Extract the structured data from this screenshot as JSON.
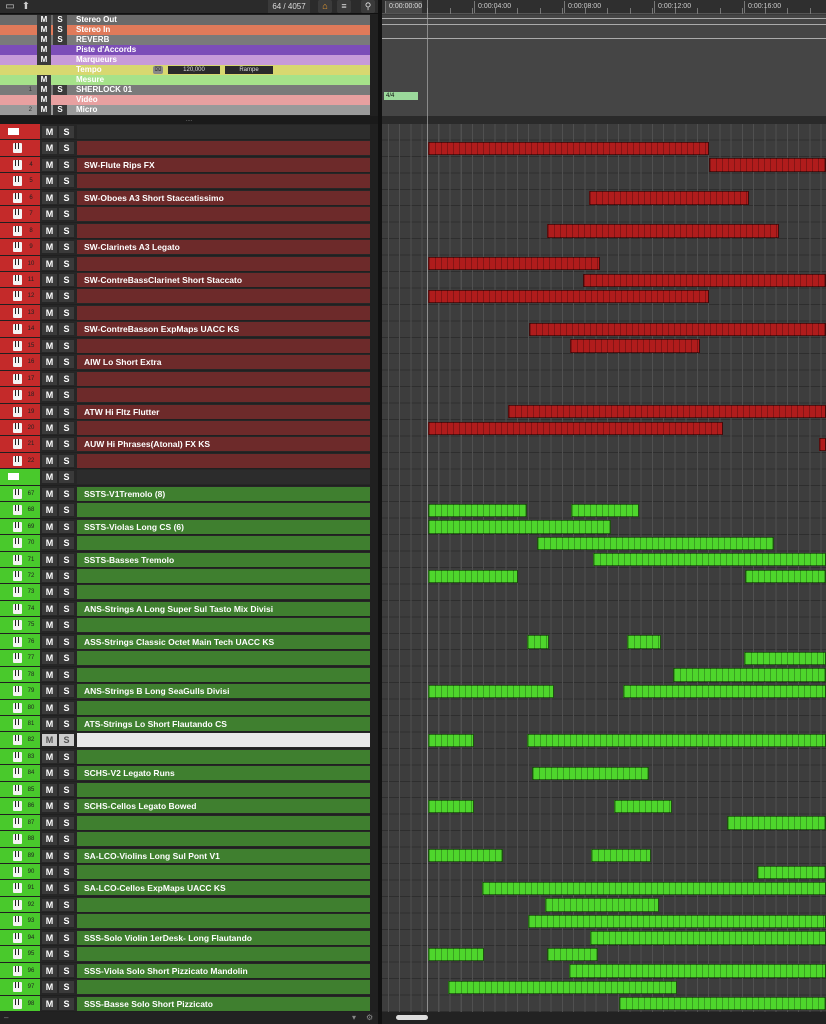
{
  "toolbar": {
    "counter": "64 / 4057"
  },
  "global_tracks": [
    {
      "name": "Stereo Out",
      "color": "#6a6a6a",
      "icon": "audio-out-icon",
      "num": "",
      "m": "M",
      "s": "S"
    },
    {
      "name": "Stereo In",
      "color": "#e07a5a",
      "icon": "audio-in-icon",
      "num": "",
      "m": "M",
      "s": "S"
    },
    {
      "name": "REVERB",
      "color": "#7a7a7a",
      "icon": "fx-icon",
      "num": "",
      "m": "M",
      "s": "S"
    },
    {
      "name": "Piste d'Accords",
      "color": "#7c4db8",
      "icon": "chord-icon",
      "num": "",
      "m": "M",
      "s": ""
    },
    {
      "name": "Marqueurs",
      "color": "#c79bd9",
      "icon": "marker-icon",
      "num": "",
      "m": "M",
      "s": ""
    },
    {
      "name": "Tempo",
      "color": "#d8d870",
      "icon": "tempo-icon",
      "num": "",
      "m": "",
      "s": ""
    },
    {
      "name": "Mesure",
      "color": "#a6e28a",
      "icon": "signature-icon",
      "num": "",
      "m": "M",
      "s": ""
    },
    {
      "name": "SHERLOCK 01",
      "color": "#7a7a7a",
      "icon": "video-icon",
      "num": "1",
      "m": "M",
      "s": "S"
    },
    {
      "name": "Vidéo",
      "color": "#e8a0a0",
      "icon": "video-icon",
      "num": "",
      "m": "M",
      "s": ""
    },
    {
      "name": "Micro",
      "color": "#9a9a9a",
      "icon": "mic-icon",
      "num": "2",
      "m": "M",
      "s": "S"
    }
  ],
  "tempo": {
    "value": "120,000",
    "mode": "Rampe"
  },
  "signature": "4/4",
  "ruler": [
    "0:00:00:00",
    "0:00:04:00",
    "0:00:08:00",
    "0:00:12:00",
    "0:00:16:00"
  ],
  "colors": {
    "red_track": "#6d2a2a",
    "red_accent": "#c42a2a",
    "green_track": "#3f7f2f",
    "green_accent": "#49c92c",
    "red_clip": "#b01c1c",
    "green_clip": "#4ed62c"
  },
  "tracks": [
    {
      "type": "folder",
      "color": "red",
      "num": "",
      "name": "",
      "m": "M",
      "s": "S"
    },
    {
      "type": "inst",
      "color": "red",
      "num": "",
      "name": "",
      "m": "M",
      "s": "S",
      "clips": [
        [
          0,
          314
        ]
      ]
    },
    {
      "type": "inst",
      "color": "red",
      "num": "4",
      "name": "SW-Flute Rips FX",
      "m": "M",
      "s": "S",
      "clips": [
        [
          314,
          444
        ]
      ]
    },
    {
      "type": "inst",
      "color": "red",
      "num": "5",
      "name": "",
      "m": "M",
      "s": "S",
      "clips": []
    },
    {
      "type": "inst",
      "color": "red",
      "num": "6",
      "name": "SW-Oboes A3 Short Staccatissimo",
      "m": "M",
      "s": "S",
      "clips": [
        [
          180,
          358
        ]
      ]
    },
    {
      "type": "inst",
      "color": "red",
      "num": "7",
      "name": "",
      "m": "M",
      "s": "S",
      "clips": []
    },
    {
      "type": "inst",
      "color": "red",
      "num": "8",
      "name": "",
      "m": "M",
      "s": "S",
      "clips": [
        [
          133,
          392
        ]
      ]
    },
    {
      "type": "inst",
      "color": "red",
      "num": "9",
      "name": "SW-Clarinets A3 Legato",
      "m": "M",
      "s": "S",
      "clips": []
    },
    {
      "type": "inst",
      "color": "red",
      "num": "10",
      "name": "",
      "m": "M",
      "s": "S",
      "clips": [
        [
          0,
          192
        ]
      ]
    },
    {
      "type": "inst",
      "color": "red",
      "num": "11",
      "name": "SW-ContreBassClarinet Short Staccato",
      "m": "M",
      "s": "S",
      "clips": [
        [
          173,
          444
        ]
      ]
    },
    {
      "type": "inst",
      "color": "red",
      "num": "12",
      "name": "",
      "m": "M",
      "s": "S",
      "clips": [
        [
          0,
          314
        ]
      ]
    },
    {
      "type": "inst",
      "color": "red",
      "num": "13",
      "name": "",
      "m": "M",
      "s": "S",
      "clips": []
    },
    {
      "type": "inst",
      "color": "red",
      "num": "14",
      "name": "SW-ContreBasson ExpMaps UACC KS",
      "m": "M",
      "s": "S",
      "clips": [
        [
          113,
          444
        ]
      ]
    },
    {
      "type": "inst",
      "color": "red",
      "num": "15",
      "name": "",
      "m": "M",
      "s": "S",
      "clips": [
        [
          158,
          304
        ]
      ]
    },
    {
      "type": "inst",
      "color": "red",
      "num": "16",
      "name": "AIW Lo Short Extra",
      "m": "M",
      "s": "S",
      "clips": []
    },
    {
      "type": "inst",
      "color": "red",
      "num": "17",
      "name": "",
      "m": "M",
      "s": "S",
      "clips": []
    },
    {
      "type": "inst",
      "color": "red",
      "num": "18",
      "name": "",
      "m": "M",
      "s": "S",
      "clips": []
    },
    {
      "type": "inst",
      "color": "red",
      "num": "19",
      "name": "ATW Hi Fltz Flutter",
      "m": "M",
      "s": "S",
      "clips": [
        [
          89,
          444
        ]
      ]
    },
    {
      "type": "inst",
      "color": "red",
      "num": "20",
      "name": "",
      "m": "M",
      "s": "S",
      "clips": [
        [
          0,
          329
        ]
      ]
    },
    {
      "type": "inst",
      "color": "red",
      "num": "21",
      "name": "AUW Hi Phrases(Atonal) FX KS",
      "m": "M",
      "s": "S",
      "clips": [
        [
          436,
          444
        ]
      ]
    },
    {
      "type": "inst",
      "color": "red",
      "num": "22",
      "name": "",
      "m": "M",
      "s": "S",
      "clips": []
    },
    {
      "type": "folder",
      "color": "green",
      "num": "",
      "name": "",
      "m": "M",
      "s": "S"
    },
    {
      "type": "inst",
      "color": "green",
      "num": "67",
      "name": "SSTS-V1Tremolo (8)",
      "m": "M",
      "s": "S",
      "clips": []
    },
    {
      "type": "inst",
      "color": "green",
      "num": "68",
      "name": "",
      "m": "M",
      "s": "S",
      "clips": [
        [
          0,
          110
        ],
        [
          160,
          235
        ]
      ]
    },
    {
      "type": "inst",
      "color": "green",
      "num": "69",
      "name": "SSTS-Violas Long CS (6)",
      "m": "M",
      "s": "S",
      "clips": [
        [
          0,
          204
        ]
      ]
    },
    {
      "type": "inst",
      "color": "green",
      "num": "70",
      "name": "",
      "m": "M",
      "s": "S",
      "clips": [
        [
          122,
          386
        ]
      ]
    },
    {
      "type": "inst",
      "color": "green",
      "num": "71",
      "name": "SSTS-Basses Tremolo",
      "m": "M",
      "s": "S",
      "clips": [
        [
          184,
          444
        ]
      ]
    },
    {
      "type": "inst",
      "color": "green",
      "num": "72",
      "name": "",
      "m": "M",
      "s": "S",
      "clips": [
        [
          0,
          100
        ],
        [
          354,
          444
        ]
      ]
    },
    {
      "type": "inst",
      "color": "green",
      "num": "73",
      "name": "",
      "m": "M",
      "s": "S",
      "clips": []
    },
    {
      "type": "inst",
      "color": "green",
      "num": "74",
      "name": "ANS-Strings A Long Super Sul Tasto Mix Divisi",
      "m": "M",
      "s": "S",
      "clips": []
    },
    {
      "type": "inst",
      "color": "green",
      "num": "75",
      "name": "",
      "m": "M",
      "s": "S",
      "clips": []
    },
    {
      "type": "inst",
      "color": "green",
      "num": "76",
      "name": "ASS-Strings Classic Octet Main Tech UACC KS",
      "m": "M",
      "s": "S",
      "clips": [
        [
          110,
          135
        ],
        [
          222,
          260
        ]
      ]
    },
    {
      "type": "inst",
      "color": "green",
      "num": "77",
      "name": "",
      "m": "M",
      "s": "S",
      "clips": [
        [
          353,
          444
        ]
      ]
    },
    {
      "type": "inst",
      "color": "green",
      "num": "78",
      "name": "",
      "m": "M",
      "s": "S",
      "clips": [
        [
          273,
          444
        ]
      ]
    },
    {
      "type": "inst",
      "color": "green",
      "num": "79",
      "name": "ANS-Strings B Long SeaGulls Divisi",
      "m": "M",
      "s": "S",
      "clips": [
        [
          0,
          141
        ],
        [
          217,
          444
        ]
      ]
    },
    {
      "type": "inst",
      "color": "green",
      "num": "80",
      "name": "",
      "m": "M",
      "s": "S",
      "clips": []
    },
    {
      "type": "inst",
      "color": "green",
      "num": "81",
      "name": "ATS-Strings Lo Short Flautando CS",
      "m": "M",
      "s": "S",
      "clips": []
    },
    {
      "type": "inst",
      "color": "green",
      "num": "82",
      "name": "",
      "m": "M",
      "s": "S",
      "selected": true,
      "clips": [
        [
          0,
          51
        ],
        [
          110,
          444
        ]
      ]
    },
    {
      "type": "inst",
      "color": "green",
      "num": "83",
      "name": "",
      "m": "M",
      "s": "S",
      "clips": []
    },
    {
      "type": "inst",
      "color": "green",
      "num": "84",
      "name": "SCHS-V2 Legato Runs",
      "m": "M",
      "s": "S",
      "clips": [
        [
          116,
          246
        ]
      ]
    },
    {
      "type": "inst",
      "color": "green",
      "num": "85",
      "name": "",
      "m": "M",
      "s": "S",
      "clips": []
    },
    {
      "type": "inst",
      "color": "green",
      "num": "86",
      "name": "SCHS-Cellos Legato Bowed",
      "m": "M",
      "s": "S",
      "clips": [
        [
          0,
          51
        ],
        [
          208,
          272
        ]
      ]
    },
    {
      "type": "inst",
      "color": "green",
      "num": "87",
      "name": "",
      "m": "M",
      "s": "S",
      "clips": [
        [
          334,
          444
        ]
      ]
    },
    {
      "type": "inst",
      "color": "green",
      "num": "88",
      "name": "",
      "m": "M",
      "s": "S",
      "clips": []
    },
    {
      "type": "inst",
      "color": "green",
      "num": "89",
      "name": "SA-LCO-Violins Long Sul Pont V1",
      "m": "M",
      "s": "S",
      "clips": [
        [
          0,
          84
        ],
        [
          182,
          249
        ]
      ]
    },
    {
      "type": "inst",
      "color": "green",
      "num": "90",
      "name": "",
      "m": "M",
      "s": "S",
      "clips": [
        [
          367,
          444
        ]
      ]
    },
    {
      "type": "inst",
      "color": "green",
      "num": "91",
      "name": "SA-LCO-Cellos ExpMaps UACC KS",
      "m": "M",
      "s": "S",
      "clips": [
        [
          60,
          444
        ]
      ]
    },
    {
      "type": "inst",
      "color": "green",
      "num": "92",
      "name": "",
      "m": "M",
      "s": "S",
      "clips": [
        [
          130,
          258
        ]
      ]
    },
    {
      "type": "inst",
      "color": "green",
      "num": "93",
      "name": "",
      "m": "M",
      "s": "S",
      "clips": [
        [
          111,
          444
        ]
      ]
    },
    {
      "type": "inst",
      "color": "green",
      "num": "94",
      "name": "SSS-Solo Violin 1erDesk-  Long Flautando",
      "m": "M",
      "s": "S",
      "clips": [
        [
          181,
          444
        ]
      ]
    },
    {
      "type": "inst",
      "color": "green",
      "num": "95",
      "name": "",
      "m": "M",
      "s": "S",
      "clips": [
        [
          0,
          62
        ],
        [
          133,
          190
        ]
      ]
    },
    {
      "type": "inst",
      "color": "green",
      "num": "96",
      "name": "SSS-Viola Solo Short Pizzicato Mandolin",
      "m": "M",
      "s": "S",
      "clips": [
        [
          157,
          444
        ]
      ]
    },
    {
      "type": "inst",
      "color": "green",
      "num": "97",
      "name": "",
      "m": "M",
      "s": "S",
      "clips": [
        [
          22,
          278
        ]
      ]
    },
    {
      "type": "inst",
      "color": "green",
      "num": "98",
      "name": "SSS-Basse Solo Short Pizzicato",
      "m": "M",
      "s": "S",
      "clips": [
        [
          213,
          444
        ]
      ]
    }
  ]
}
